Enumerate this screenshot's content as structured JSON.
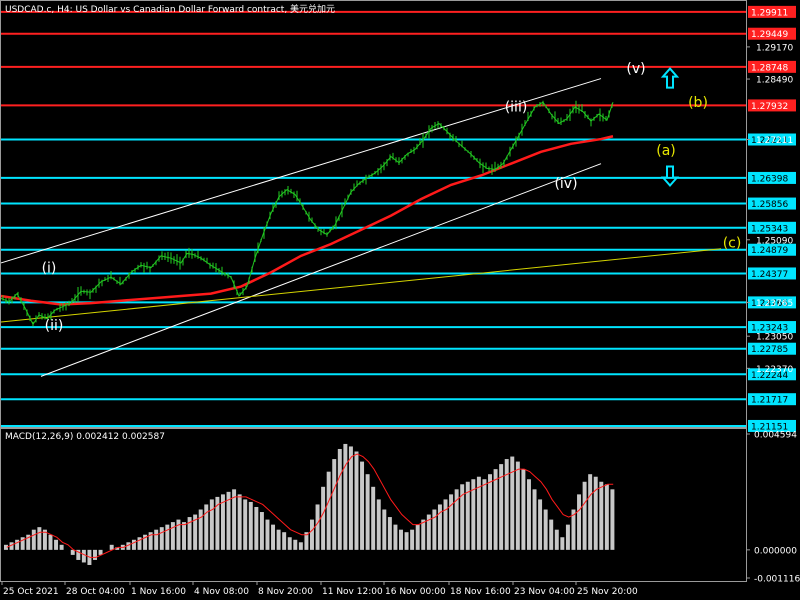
{
  "chart_data": [
    {
      "type": "line",
      "title": "USDCAD.c, H4: US Dollar vs Canadian Dollar Forward contract, 美元兑加元",
      "ylim": [
        1.2115,
        1.3012
      ],
      "x_labels": [
        "25 Oct 2021",
        "28 Oct 04:00",
        "1 Nov 16:00",
        "4 Nov 08:00",
        "8 Nov 20:00",
        "11 Nov 12:00",
        "16 Nov 00:00",
        "18 Nov 16:00",
        "23 Nov 04:00",
        "25 Nov 20:00"
      ],
      "price_labels": [
        "1.29170",
        "1.28490",
        "1.27211",
        "1.25090",
        "1.23765",
        "1.23050",
        "1.22370"
      ],
      "levels": [
        {
          "value": 1.29911,
          "label": "1.29911",
          "color": "#ff2020"
        },
        {
          "value": 1.29449,
          "label": "1.29449",
          "color": "#ff2020"
        },
        {
          "value": 1.28748,
          "label": "1.28748",
          "color": "#ff2020"
        },
        {
          "value": 1.27932,
          "label": "1.27932",
          "color": "#ff2020"
        },
        {
          "value": 1.27211,
          "label": "1.27211",
          "color": "#00e5ff"
        },
        {
          "value": 1.26398,
          "label": "1.26398",
          "color": "#00e5ff"
        },
        {
          "value": 1.25856,
          "label": "1.25856",
          "color": "#00e5ff"
        },
        {
          "value": 1.25343,
          "label": "1.25343",
          "color": "#00e5ff"
        },
        {
          "value": 1.24879,
          "label": "1.24879",
          "color": "#00e5ff"
        },
        {
          "value": 1.24377,
          "label": "1.24377",
          "color": "#00e5ff"
        },
        {
          "value": 1.23765,
          "label": "1.23765",
          "color": "#00e5ff"
        },
        {
          "value": 1.23243,
          "label": "1.23243",
          "color": "#00e5ff"
        },
        {
          "value": 1.22785,
          "label": "1.22785",
          "color": "#00e5ff"
        },
        {
          "value": 1.22244,
          "label": "1.22244",
          "color": "#00e5ff"
        },
        {
          "value": 1.21717,
          "label": "1.21717",
          "color": "#00e5ff"
        },
        {
          "value": 1.21151,
          "label": "1.21151",
          "color": "#00e5ff"
        }
      ],
      "price_path": [
        [
          0,
          1.2385
        ],
        [
          8,
          1.2378
        ],
        [
          16,
          1.2395
        ],
        [
          24,
          1.2365
        ],
        [
          32,
          1.233
        ],
        [
          38,
          1.235
        ],
        [
          46,
          1.2342
        ],
        [
          54,
          1.236
        ],
        [
          62,
          1.2368
        ],
        [
          70,
          1.2375
        ],
        [
          80,
          1.24
        ],
        [
          90,
          1.2398
        ],
        [
          100,
          1.242
        ],
        [
          110,
          1.243
        ],
        [
          120,
          1.2415
        ],
        [
          130,
          1.244
        ],
        [
          140,
          1.2455
        ],
        [
          150,
          1.245
        ],
        [
          160,
          1.2475
        ],
        [
          170,
          1.247
        ],
        [
          180,
          1.246
        ],
        [
          186,
          1.248
        ],
        [
          192,
          1.2478
        ],
        [
          200,
          1.247
        ],
        [
          210,
          1.2455
        ],
        [
          220,
          1.2442
        ],
        [
          230,
          1.243
        ],
        [
          238,
          1.239
        ],
        [
          246,
          1.241
        ],
        [
          254,
          1.247
        ],
        [
          262,
          1.252
        ],
        [
          270,
          1.2565
        ],
        [
          278,
          1.26
        ],
        [
          286,
          1.2615
        ],
        [
          294,
          1.2605
        ],
        [
          302,
          1.2578
        ],
        [
          310,
          1.255
        ],
        [
          318,
          1.253
        ],
        [
          326,
          1.252
        ],
        [
          334,
          1.254
        ],
        [
          342,
          1.2575
        ],
        [
          350,
          1.261
        ],
        [
          358,
          1.2628
        ],
        [
          366,
          1.264
        ],
        [
          374,
          1.265
        ],
        [
          382,
          1.2665
        ],
        [
          390,
          1.2685
        ],
        [
          398,
          1.2672
        ],
        [
          406,
          1.269
        ],
        [
          414,
          1.27
        ],
        [
          422,
          1.272
        ],
        [
          430,
          1.2745
        ],
        [
          438,
          1.2755
        ],
        [
          446,
          1.2738
        ],
        [
          454,
          1.272
        ],
        [
          462,
          1.2705
        ],
        [
          470,
          1.269
        ],
        [
          478,
          1.2672
        ],
        [
          486,
          1.266
        ],
        [
          494,
          1.2658
        ],
        [
          502,
          1.267
        ],
        [
          510,
          1.27
        ],
        [
          518,
          1.273
        ],
        [
          526,
          1.276
        ],
        [
          534,
          1.279
        ],
        [
          542,
          1.28
        ],
        [
          550,
          1.2775
        ],
        [
          558,
          1.2755
        ],
        [
          566,
          1.2765
        ],
        [
          574,
          1.279
        ],
        [
          582,
          1.278
        ],
        [
          590,
          1.276
        ],
        [
          598,
          1.2775
        ],
        [
          606,
          1.2762
        ],
        [
          612,
          1.28
        ]
      ],
      "ma_path": [
        [
          0,
          1.239
        ],
        [
          30,
          1.238
        ],
        [
          60,
          1.2372
        ],
        [
          90,
          1.2375
        ],
        [
          120,
          1.238
        ],
        [
          150,
          1.2385
        ],
        [
          180,
          1.239
        ],
        [
          210,
          1.2395
        ],
        [
          240,
          1.241
        ],
        [
          270,
          1.244
        ],
        [
          300,
          1.2475
        ],
        [
          330,
          1.25
        ],
        [
          360,
          1.253
        ],
        [
          390,
          1.256
        ],
        [
          420,
          1.2595
        ],
        [
          450,
          1.2625
        ],
        [
          480,
          1.2645
        ],
        [
          510,
          1.267
        ],
        [
          540,
          1.2695
        ],
        [
          570,
          1.2712
        ],
        [
          600,
          1.2722
        ],
        [
          612,
          1.2728
        ]
      ],
      "trendlines": [
        {
          "from": [
            0,
            1.246
          ],
          "to": [
            600,
            1.285
          ],
          "color": "#ffffff"
        },
        {
          "from": [
            40,
            1.222
          ],
          "to": [
            600,
            1.267
          ],
          "color": "#ffffff"
        },
        {
          "from": [
            0,
            1.2335
          ],
          "to": [
            720,
            1.249
          ],
          "color": "#d4d400"
        }
      ],
      "wave_labels": [
        {
          "text": "(i)",
          "x": 48,
          "price": 1.244,
          "color": "#ffffff"
        },
        {
          "text": "(ii)",
          "x": 53,
          "price": 1.2318,
          "color": "#ffffff"
        },
        {
          "text": "(iii)",
          "x": 515,
          "price": 1.278,
          "color": "#ffffff"
        },
        {
          "text": "(iv)",
          "x": 565,
          "price": 1.2618,
          "color": "#ffffff"
        },
        {
          "text": "(v)",
          "x": 635,
          "price": 1.2862,
          "color": "#ffffff"
        },
        {
          "text": "(a)",
          "x": 665,
          "price": 1.2688,
          "color": "#e6e600"
        },
        {
          "text": "(b)",
          "x": 697,
          "price": 1.279,
          "color": "#e6e600"
        },
        {
          "text": "(c)",
          "x": 731,
          "price": 1.2493,
          "color": "#e6e600"
        }
      ],
      "arrows": [
        {
          "direction": "up",
          "x": 669,
          "price": 1.285,
          "color": "#00e5ff"
        },
        {
          "direction": "down",
          "x": 669,
          "price": 1.2645,
          "color": "#00e5ff"
        }
      ]
    },
    {
      "type": "bar",
      "title": "MACD(12,26,9) 0.002412 0.002587",
      "ylim": [
        -0.001116,
        0.004594
      ],
      "y_labels": [
        "0.004594",
        "0.000000",
        "-0.001116"
      ],
      "histogram": [
        0.0002,
        0.0003,
        0.0004,
        0.0005,
        0.0006,
        0.0008,
        0.0009,
        0.0008,
        0.0006,
        0.0004,
        0.0002,
        0.0,
        -0.0002,
        -0.0004,
        -0.0005,
        -0.0006,
        -0.0004,
        -0.0002,
        0.0,
        0.0002,
        0.0001,
        0.0002,
        0.0003,
        0.0004,
        0.0005,
        0.0006,
        0.0007,
        0.0008,
        0.0009,
        0.001,
        0.0011,
        0.0012,
        0.0011,
        0.0013,
        0.0014,
        0.0016,
        0.0018,
        0.002,
        0.0021,
        0.0022,
        0.0023,
        0.0024,
        0.0022,
        0.002,
        0.0019,
        0.0017,
        0.0015,
        0.0012,
        0.001,
        0.0008,
        0.0007,
        0.0005,
        0.0004,
        0.0003,
        0.0007,
        0.0012,
        0.0018,
        0.0025,
        0.0031,
        0.0036,
        0.004,
        0.0042,
        0.0041,
        0.0039,
        0.0035,
        0.003,
        0.0025,
        0.002,
        0.0016,
        0.0013,
        0.001,
        0.0008,
        0.0007,
        0.0008,
        0.001,
        0.0012,
        0.0014,
        0.0016,
        0.0018,
        0.002,
        0.0022,
        0.0024,
        0.0026,
        0.0027,
        0.0028,
        0.0029,
        0.0028,
        0.003,
        0.0032,
        0.0034,
        0.0036,
        0.0037,
        0.0035,
        0.0032,
        0.0028,
        0.0024,
        0.002,
        0.0016,
        0.0012,
        0.0008,
        0.0005,
        0.001,
        0.0016,
        0.0022,
        0.0027,
        0.003,
        0.0029,
        0.0027,
        0.0026,
        0.0024
      ],
      "signal": [
        0.0001,
        0.0002,
        0.0003,
        0.0004,
        0.0005,
        0.0006,
        0.0007,
        0.0007,
        0.0006,
        0.0005,
        0.0003,
        0.0002,
        0.0,
        -0.0001,
        -0.0002,
        -0.0003,
        -0.0003,
        -0.0002,
        -0.0001,
        0.0,
        0.0001,
        0.0001,
        0.0002,
        0.0003,
        0.0004,
        0.0005,
        0.0006,
        0.0006,
        0.0007,
        0.0008,
        0.0009,
        0.001,
        0.001,
        0.0011,
        0.0012,
        0.0013,
        0.0015,
        0.0016,
        0.0018,
        0.0019,
        0.002,
        0.0021,
        0.0021,
        0.0021,
        0.002,
        0.0019,
        0.0018,
        0.0016,
        0.0014,
        0.0012,
        0.001,
        0.0008,
        0.0007,
        0.0006,
        0.0006,
        0.0008,
        0.0011,
        0.0015,
        0.002,
        0.0025,
        0.003,
        0.0034,
        0.0037,
        0.0038,
        0.0037,
        0.0035,
        0.0032,
        0.0028,
        0.0024,
        0.002,
        0.0017,
        0.0014,
        0.0012,
        0.001,
        0.001,
        0.0011,
        0.0012,
        0.0013,
        0.0015,
        0.0016,
        0.0018,
        0.002,
        0.0022,
        0.0023,
        0.0024,
        0.0025,
        0.0026,
        0.0027,
        0.0028,
        0.0029,
        0.003,
        0.0031,
        0.0032,
        0.0032,
        0.0031,
        0.0029,
        0.0027,
        0.0024,
        0.002,
        0.0017,
        0.0014,
        0.0013,
        0.0014,
        0.0016,
        0.0019,
        0.0022,
        0.0024,
        0.0025,
        0.0026,
        0.0026
      ]
    }
  ]
}
